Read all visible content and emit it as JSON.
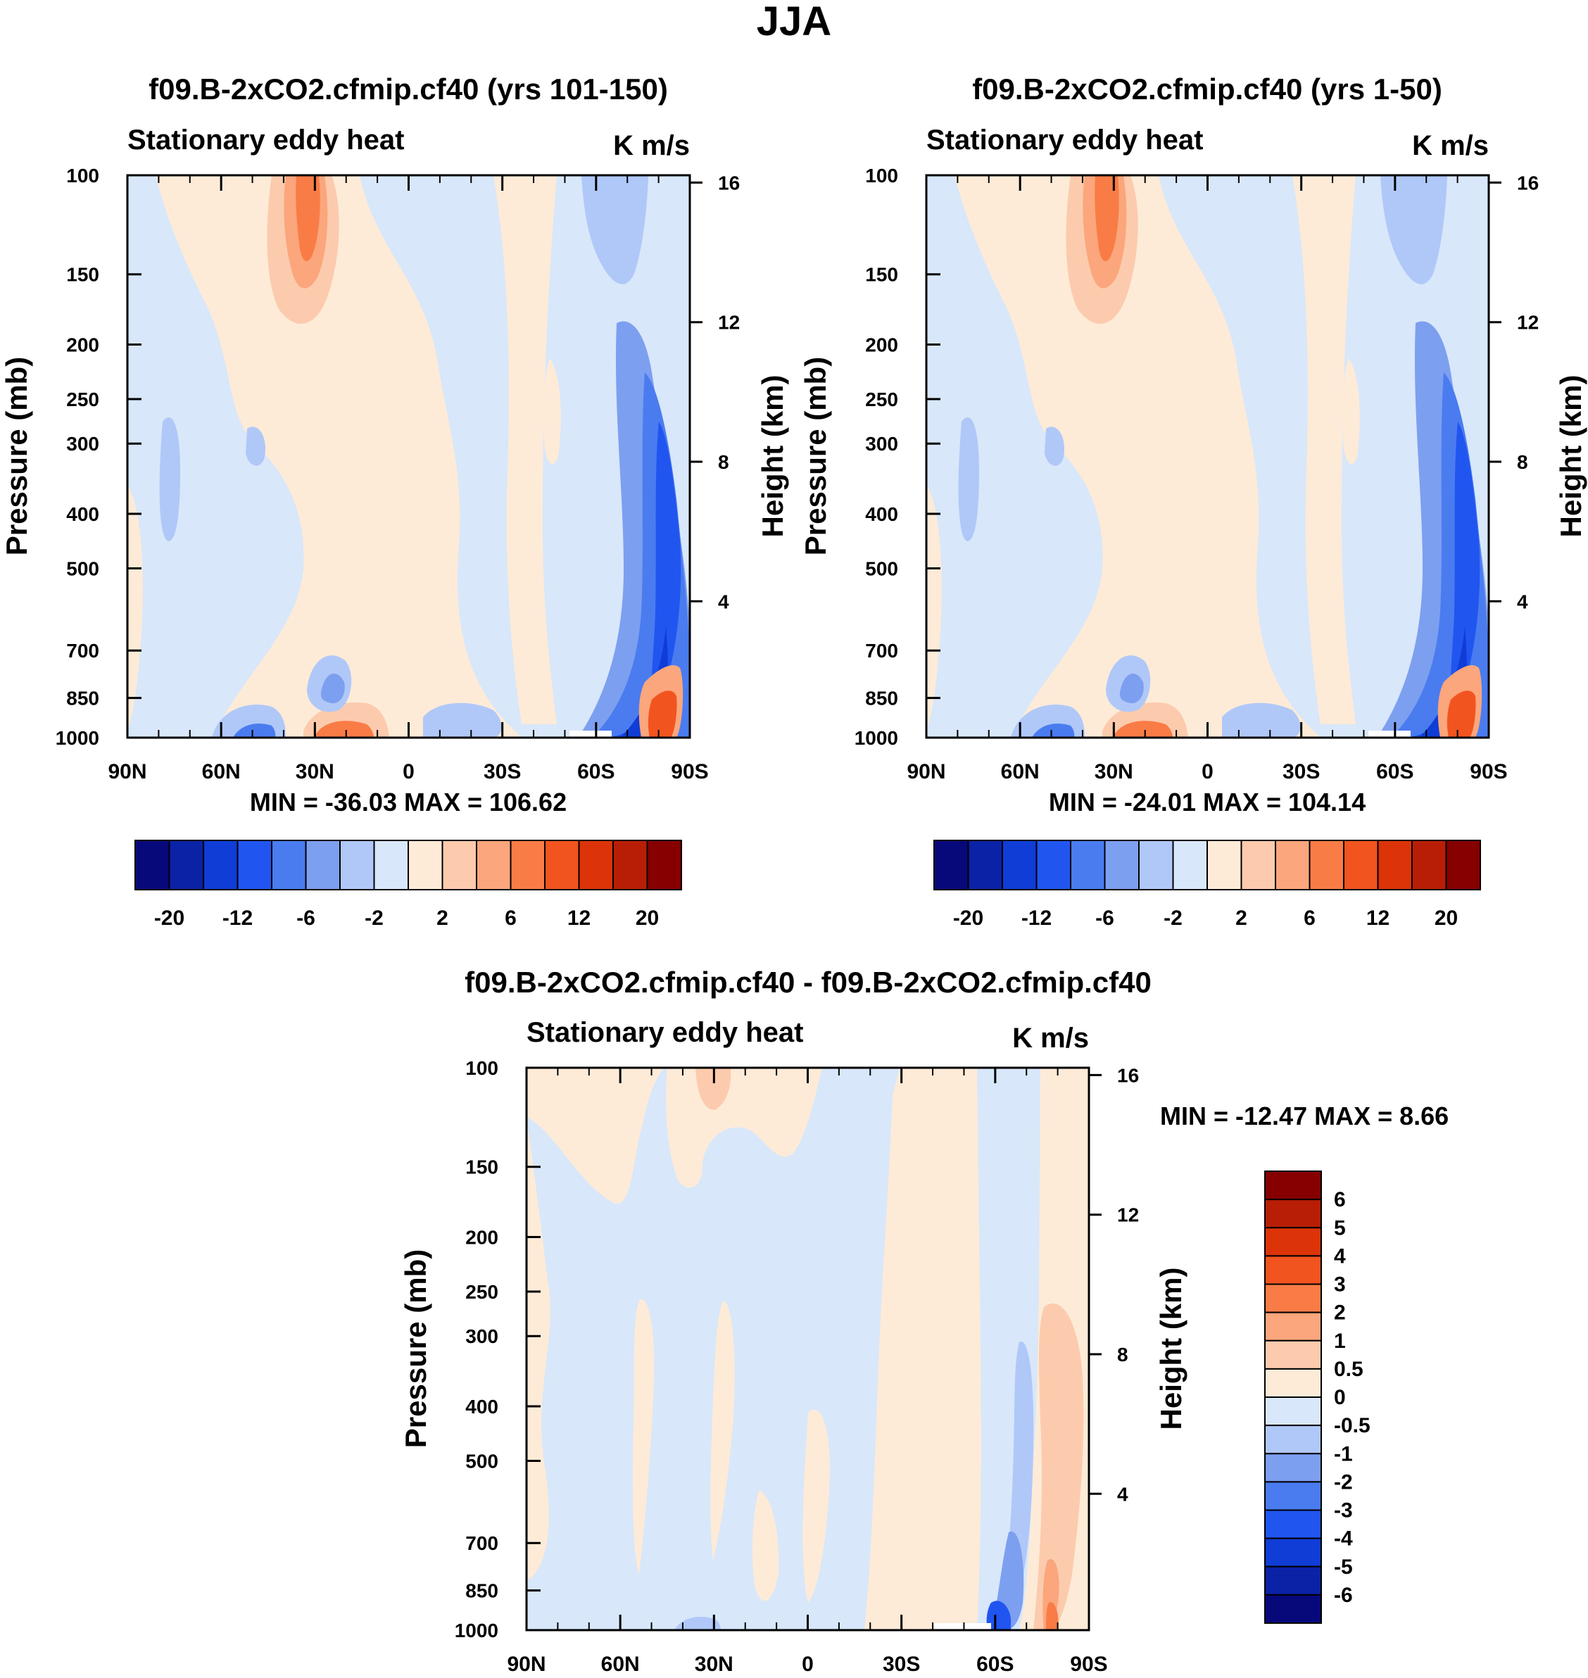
{
  "page_title": "JJA",
  "colors": {
    "c_neg7": "#07087a",
    "c_neg6": "#0a22a6",
    "c_neg5": "#0f3dd6",
    "c_neg4": "#2155f0",
    "c_neg3": "#4a7cf0",
    "c_neg2": "#7d9ff0",
    "c_neg1": "#b0c8f8",
    "c_neg0": "#d8e7fa",
    "c_pos0": "#fdebd8",
    "c_pos1": "#fccbad",
    "c_pos2": "#fba67c",
    "c_pos3": "#f97c46",
    "c_pos4": "#f2541f",
    "c_pos5": "#dc3308",
    "c_pos6": "#b81e06",
    "c_pos7": "#860000"
  },
  "chart_data": [
    {
      "type": "contour",
      "title": "f09.B-2xCO2.cfmip.cf40 (yrs 101-150)",
      "left_label": "Stationary eddy heat",
      "units": "K m/s",
      "ylabel": "Pressure (mb)",
      "ylabel_right": "Height (km)",
      "x_ticks": [
        "90N",
        "60N",
        "30N",
        "0",
        "30S",
        "60S",
        "90S"
      ],
      "y_ticks": [
        100,
        150,
        200,
        250,
        300,
        400,
        500,
        700,
        850,
        1000
      ],
      "height_ticks": [
        16,
        12,
        8,
        4
      ],
      "min_max": "MIN = -36.03  MAX = 106.62",
      "min": -36.03,
      "max": 106.62,
      "levels": [
        "-20",
        "-12",
        "-6",
        "-2",
        "2",
        "6",
        "12",
        "20"
      ],
      "colorbar_orientation": "horizontal"
    },
    {
      "type": "contour",
      "title": "f09.B-2xCO2.cfmip.cf40 (yrs 1-50)",
      "left_label": "Stationary eddy heat",
      "units": "K m/s",
      "ylabel": "Pressure (mb)",
      "ylabel_right": "Height (km)",
      "x_ticks": [
        "90N",
        "60N",
        "30N",
        "0",
        "30S",
        "60S",
        "90S"
      ],
      "y_ticks": [
        100,
        150,
        200,
        250,
        300,
        400,
        500,
        700,
        850,
        1000
      ],
      "height_ticks": [
        16,
        12,
        8,
        4
      ],
      "min_max": "MIN = -24.01  MAX = 104.14",
      "min": -24.01,
      "max": 104.14,
      "levels": [
        "-20",
        "-12",
        "-6",
        "-2",
        "2",
        "6",
        "12",
        "20"
      ],
      "colorbar_orientation": "horizontal"
    },
    {
      "type": "contour",
      "title": "f09.B-2xCO2.cfmip.cf40 - f09.B-2xCO2.cfmip.cf40",
      "left_label": "Stationary eddy heat",
      "units": "K m/s",
      "ylabel": "Pressure (mb)",
      "ylabel_right": "Height (km)",
      "x_ticks": [
        "90N",
        "60N",
        "30N",
        "0",
        "30S",
        "60S",
        "90S"
      ],
      "y_ticks": [
        100,
        150,
        200,
        250,
        300,
        400,
        500,
        700,
        850,
        1000
      ],
      "height_ticks": [
        16,
        12,
        8,
        4
      ],
      "min_max": "MIN = -12.47  MAX =   8.66",
      "min": -12.47,
      "max": 8.66,
      "levels": [
        "6",
        "5",
        "4",
        "3",
        "2",
        "1",
        "0.5",
        "0",
        "-0.5",
        "-1",
        "-2",
        "-3",
        "-4",
        "-5",
        "-6"
      ],
      "colorbar_orientation": "vertical"
    }
  ]
}
